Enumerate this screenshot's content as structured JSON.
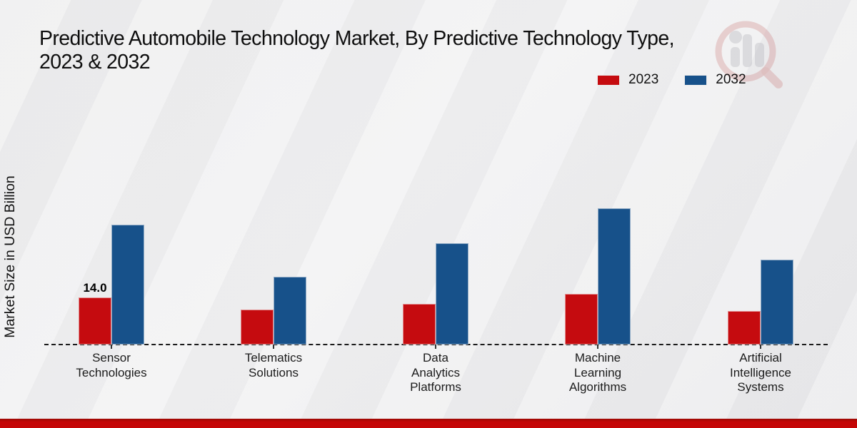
{
  "title": "Predictive Automobile Technology Market, By Predictive Technology Type,\n2023 & 2032",
  "ylabel": "Market Size in USD Billion",
  "watermark_icon": "magnifier-bar-chart-logo",
  "legend": {
    "items": [
      {
        "label": "2023",
        "color": "#c50b0f"
      },
      {
        "label": "2032",
        "color": "#17518a"
      }
    ]
  },
  "chart_data": {
    "type": "bar",
    "title": "Predictive Automobile Technology Market, By Predictive Technology Type, 2023 & 2032",
    "ylabel": "Market Size in USD Billion",
    "unit": "USD Billion",
    "categories": [
      "Sensor Technologies",
      "Telematics Solutions",
      "Data Analytics Platforms",
      "Machine Learning Algorithms",
      "Artificial Intelligence Systems"
    ],
    "series": [
      {
        "name": "2023",
        "color": "#c50b0f",
        "values": [
          14.0,
          10.4,
          12.0,
          15.1,
          9.9
        ]
      },
      {
        "name": "2032",
        "color": "#17518a",
        "values": [
          35.6,
          20.2,
          30.2,
          40.5,
          25.3
        ]
      }
    ],
    "data_labels": [
      {
        "series": 0,
        "category": 0,
        "text": "14.0"
      }
    ],
    "baseline_style": "dashed",
    "legend_position": "top-right",
    "y_axis_ticks_visible": false,
    "grid": false
  }
}
